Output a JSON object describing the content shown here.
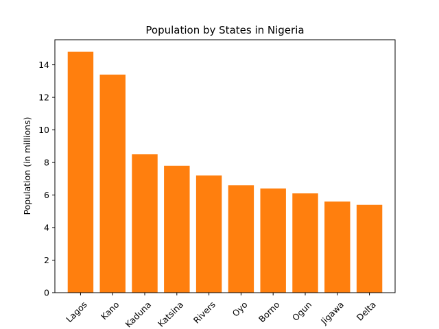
{
  "chart_data": {
    "type": "bar",
    "title": "Population by States in Nigeria",
    "xlabel": "",
    "ylabel": "Population (in millions)",
    "categories": [
      "Lagos",
      "Kano",
      "Kaduna",
      "Katsina",
      "Rivers",
      "Oyo",
      "Borno",
      "Ogun",
      "Jigawa",
      "Delta"
    ],
    "values": [
      14.8,
      13.4,
      8.5,
      7.8,
      7.2,
      6.6,
      6.4,
      6.1,
      5.6,
      5.4
    ],
    "ylim": [
      0,
      15.54
    ],
    "yticks": [
      0,
      2,
      4,
      6,
      8,
      10,
      12,
      14
    ],
    "bar_color": "#ff7f0e",
    "grid": false,
    "legend": "none"
  }
}
